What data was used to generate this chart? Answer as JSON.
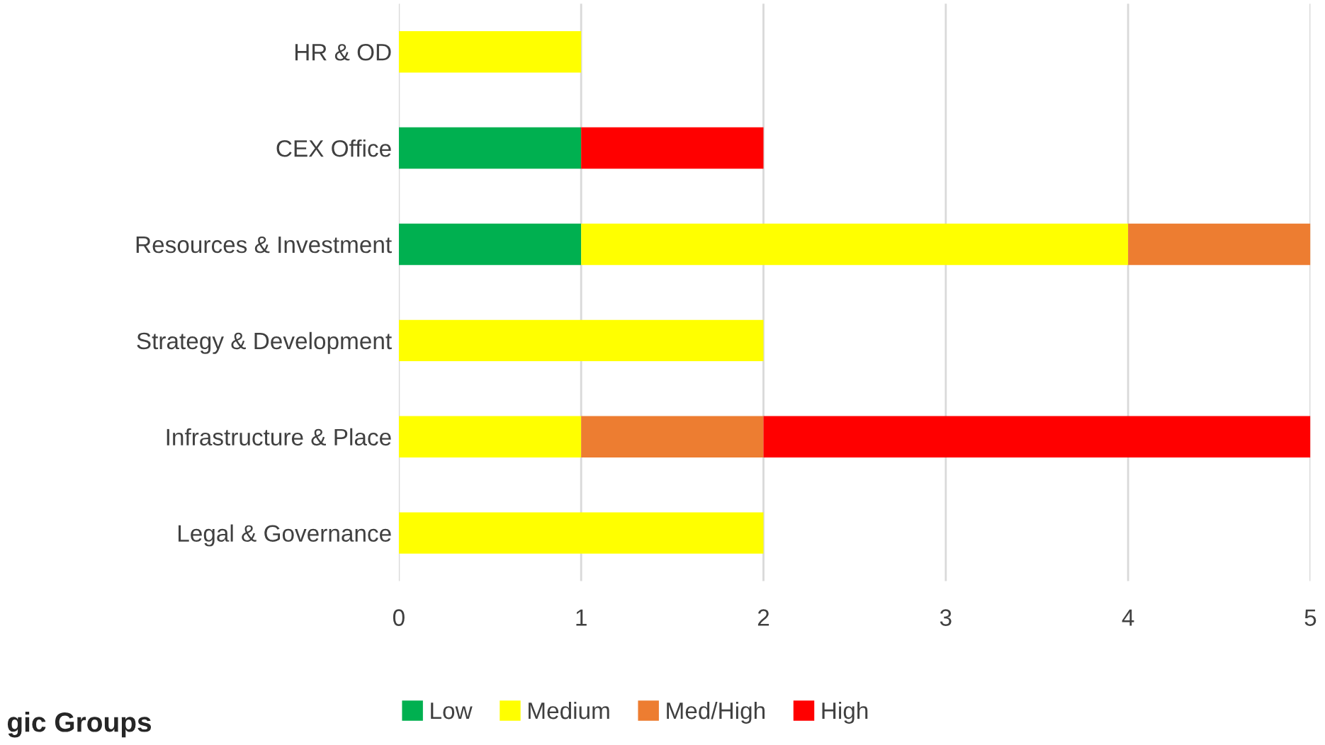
{
  "chart_data": {
    "type": "bar",
    "orientation": "horizontal",
    "stacked": true,
    "categories": [
      "HR & OD",
      "CEX Office",
      "Resources & Investment",
      "Strategy & Development",
      "Infrastructure & Place",
      "Legal & Governance"
    ],
    "series": [
      {
        "name": "Low",
        "color": "#00b050",
        "values": [
          null,
          1,
          1,
          null,
          null,
          null
        ]
      },
      {
        "name": "Medium",
        "color": "#ffff00",
        "values": [
          1,
          null,
          3,
          2,
          1,
          2
        ]
      },
      {
        "name": "Med/High",
        "color": "#ed7d31",
        "values": [
          null,
          null,
          1,
          null,
          1,
          null
        ]
      },
      {
        "name": "High",
        "color": "#ff0000",
        "values": [
          null,
          1,
          null,
          null,
          3,
          null
        ]
      }
    ],
    "xlim": [
      0,
      5
    ],
    "xticks": [
      0,
      1,
      2,
      3,
      4,
      5
    ],
    "grid": "x",
    "legend": "bottom",
    "annotations": [
      "gic Groups"
    ]
  }
}
